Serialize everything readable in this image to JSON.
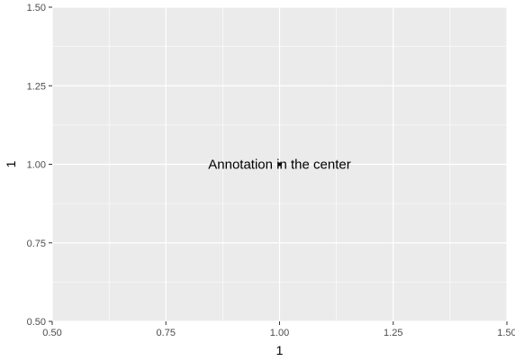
{
  "chart_data": {
    "type": "scatter",
    "title": "",
    "xlabel": "1",
    "ylabel": "1",
    "xlim": [
      0.5,
      1.5
    ],
    "ylim": [
      0.5,
      1.5
    ],
    "x_ticks": [
      0.5,
      0.75,
      1.0,
      1.25,
      1.5
    ],
    "x_tick_labels": [
      "0.50",
      "0.75",
      "1.00",
      "1.25",
      "1.50"
    ],
    "y_ticks": [
      0.5,
      0.75,
      1.0,
      1.25,
      1.5
    ],
    "y_tick_labels": [
      "0.50",
      "0.75",
      "1.00",
      "1.25",
      "1.50"
    ],
    "grid": true,
    "points": [
      {
        "x": 1.0,
        "y": 1.0
      }
    ],
    "annotations": [
      {
        "text": "Annotation in the center",
        "x": 1.0,
        "y": 1.0
      }
    ]
  },
  "colors": {
    "panel_background": "#ebebeb",
    "grid_line": "#ffffff",
    "tick_text": "#4d4d4d",
    "axis_title_text": "#000000",
    "point": "#000000",
    "annotation_text": "#000000"
  }
}
